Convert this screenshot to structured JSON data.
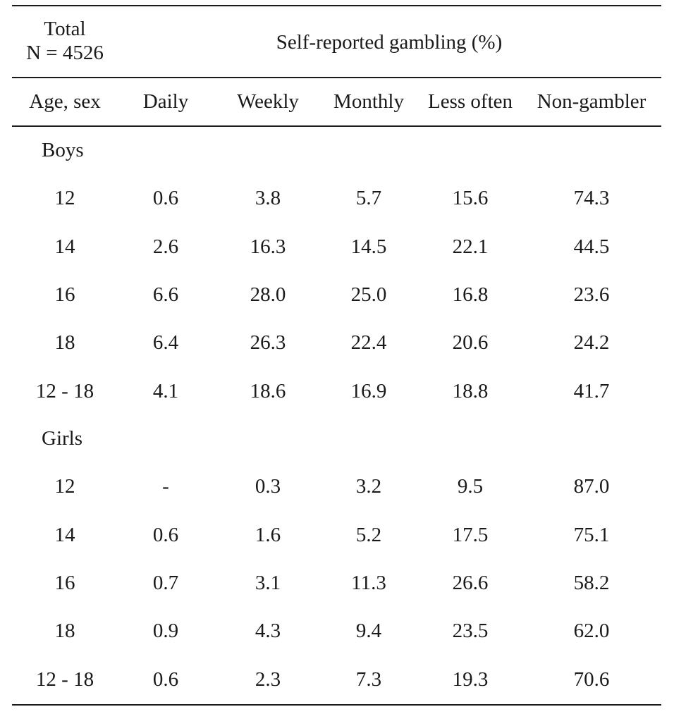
{
  "table": {
    "header": {
      "total_line1": "Total",
      "total_line2": "N = 4526",
      "spanner": "Self-reported gambling (%)",
      "columns": [
        "Age, sex",
        "Daily",
        "Weekly",
        "Monthly",
        "Less often",
        "Non-gambler"
      ]
    },
    "groups": [
      {
        "label": "Boys",
        "rows": [
          [
            "12",
            "0.6",
            "3.8",
            "5.7",
            "15.6",
            "74.3"
          ],
          [
            "14",
            "2.6",
            "16.3",
            "14.5",
            "22.1",
            "44.5"
          ],
          [
            "16",
            "6.6",
            "28.0",
            "25.0",
            "16.8",
            "23.6"
          ],
          [
            "18",
            "6.4",
            "26.3",
            "22.4",
            "20.6",
            "24.2"
          ],
          [
            "12 - 18",
            "4.1",
            "18.6",
            "16.9",
            "18.8",
            "41.7"
          ]
        ]
      },
      {
        "label": "Girls",
        "rows": [
          [
            "12",
            "-",
            "0.3",
            "3.2",
            "9.5",
            "87.0"
          ],
          [
            "14",
            "0.6",
            "1.6",
            "5.2",
            "17.5",
            "75.1"
          ],
          [
            "16",
            "0.7",
            "3.1",
            "11.3",
            "26.6",
            "58.2"
          ],
          [
            "18",
            "0.9",
            "4.3",
            "9.4",
            "23.5",
            "62.0"
          ],
          [
            "12 - 18",
            "0.6",
            "2.3",
            "7.3",
            "19.3",
            "70.6"
          ]
        ]
      }
    ]
  }
}
